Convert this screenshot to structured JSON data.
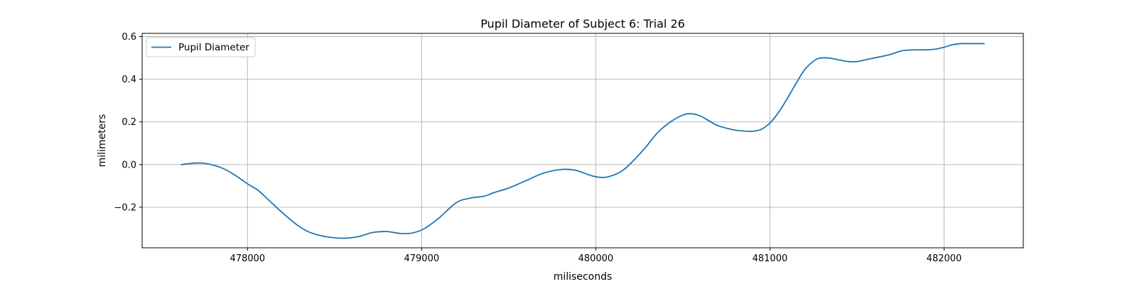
{
  "chart_data": {
    "type": "line",
    "title": "Pupil Diameter of Subject 6: Trial 26",
    "xlabel": "miliseconds",
    "ylabel": "milimeters",
    "xlim": [
      477395,
      482455
    ],
    "ylim": [
      -0.39,
      0.615
    ],
    "xticks": [
      478000,
      479000,
      480000,
      481000,
      482000
    ],
    "xtick_labels": [
      "478000",
      "479000",
      "480000",
      "481000",
      "482000"
    ],
    "yticks": [
      -0.2,
      0.0,
      0.2,
      0.4,
      0.6
    ],
    "ytick_labels": [
      "−0.2",
      "0.0",
      "0.2",
      "0.4",
      "0.6"
    ],
    "grid": true,
    "legend_position": "upper left",
    "series": [
      {
        "name": "Pupil Diameter",
        "color": "#1f77b4",
        "x": [
          477620,
          477700,
          477760,
          477850,
          477920,
          478000,
          478060,
          478120,
          478200,
          478280,
          478350,
          478420,
          478500,
          478560,
          478640,
          478720,
          478800,
          478880,
          478950,
          479020,
          479100,
          479200,
          479280,
          479360,
          479420,
          479500,
          479600,
          479700,
          479800,
          479880,
          479950,
          480000,
          480050,
          480100,
          480150,
          480200,
          480280,
          480350,
          480420,
          480500,
          480550,
          480600,
          480650,
          480700,
          480780,
          480850,
          480900,
          480950,
          481000,
          481050,
          481100,
          481150,
          481200,
          481260,
          481300,
          481350,
          481400,
          481450,
          481500,
          481560,
          481600,
          481650,
          481700,
          481750,
          481800,
          481850,
          481900,
          481950,
          482000,
          482050,
          482100,
          482150,
          482230
        ],
        "y": [
          0.0,
          0.007,
          0.005,
          -0.015,
          -0.045,
          -0.09,
          -0.12,
          -0.165,
          -0.225,
          -0.28,
          -0.315,
          -0.333,
          -0.343,
          -0.345,
          -0.337,
          -0.318,
          -0.314,
          -0.323,
          -0.32,
          -0.298,
          -0.25,
          -0.178,
          -0.157,
          -0.148,
          -0.13,
          -0.11,
          -0.075,
          -0.04,
          -0.023,
          -0.026,
          -0.045,
          -0.057,
          -0.06,
          -0.05,
          -0.03,
          0.005,
          0.075,
          0.145,
          0.195,
          0.232,
          0.238,
          0.228,
          0.205,
          0.183,
          0.165,
          0.157,
          0.156,
          0.165,
          0.195,
          0.245,
          0.31,
          0.38,
          0.445,
          0.49,
          0.5,
          0.498,
          0.49,
          0.483,
          0.483,
          0.493,
          0.5,
          0.508,
          0.518,
          0.532,
          0.537,
          0.538,
          0.538,
          0.541,
          0.55,
          0.562,
          0.567,
          0.567,
          0.567
        ]
      }
    ]
  }
}
